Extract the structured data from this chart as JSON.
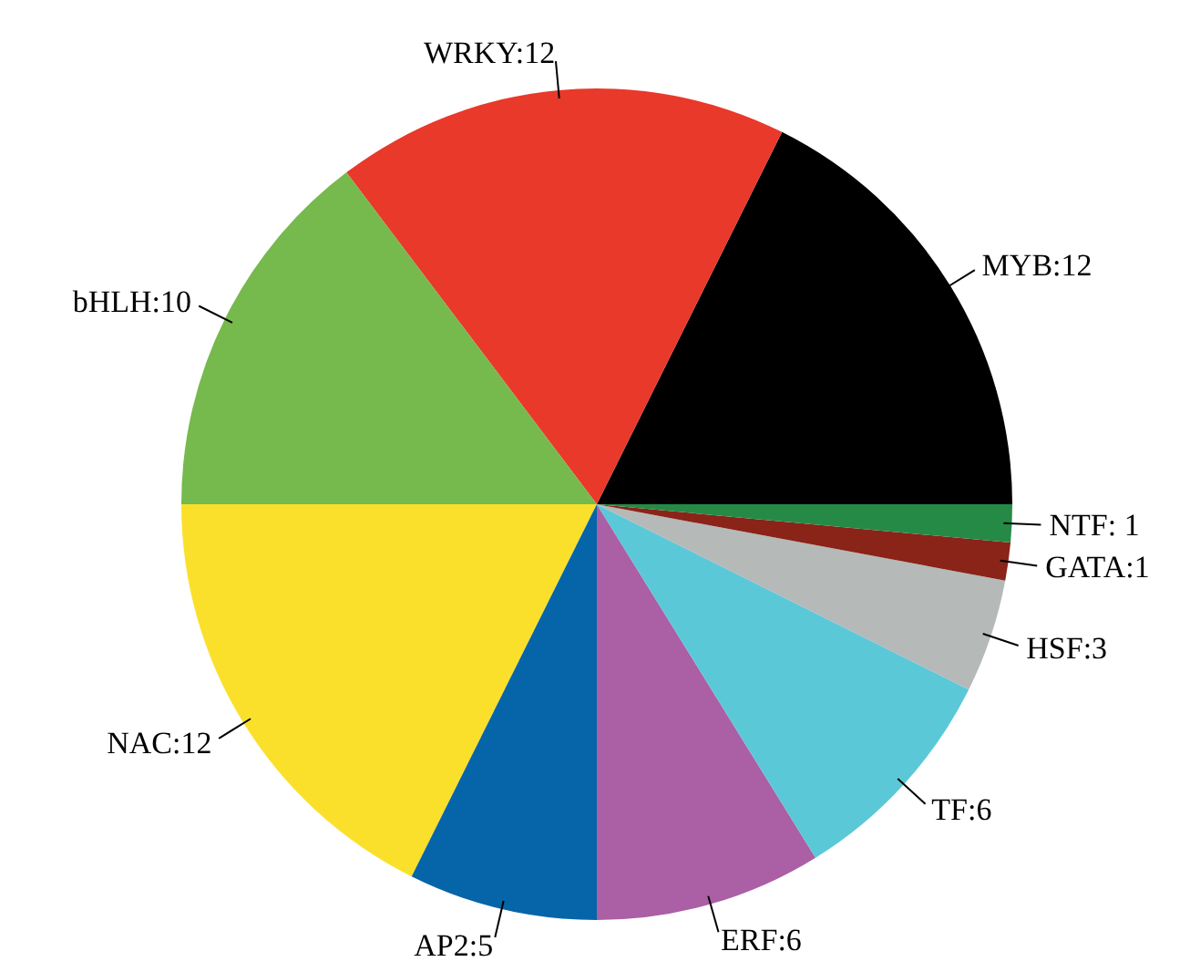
{
  "chart_data": {
    "type": "pie",
    "categories": [
      "MYB:12",
      "WRKY:12",
      "bHLH:10",
      "NAC:12",
      "AP2:5",
      "ERF:6",
      "TF:6",
      "HSF:3",
      "GATA:1",
      "NTF: 1"
    ],
    "values": [
      12,
      12,
      10,
      12,
      5,
      6,
      6,
      3,
      1,
      1
    ],
    "colors": [
      "#000000",
      "#e8392b",
      "#76b94c",
      "#fbe02b",
      "#0565a8",
      "#ab5fa5",
      "#5bc8d8",
      "#b5b9b8",
      "#8a2318",
      "#268a47"
    ]
  }
}
